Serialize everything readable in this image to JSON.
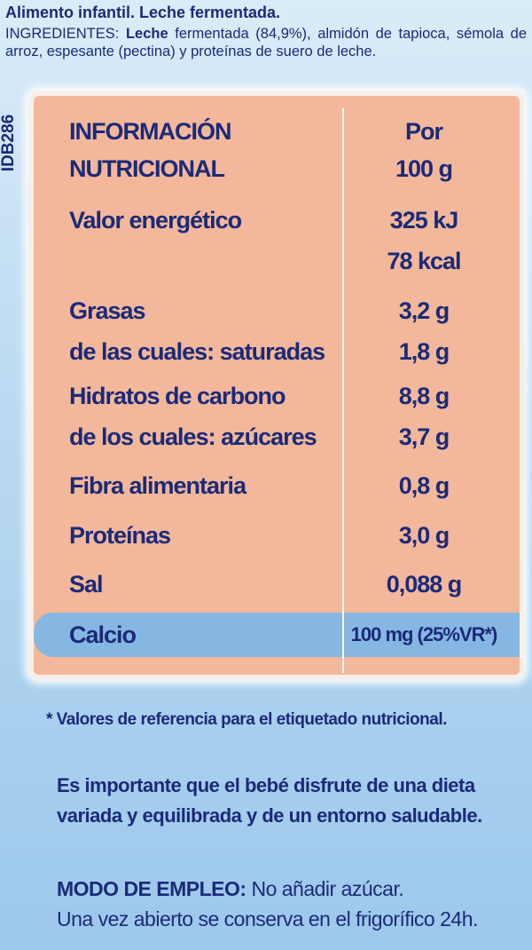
{
  "header": {
    "title": "Alimento infantil. Leche fermentada.",
    "ingredients": {
      "label": "INGREDIENTES:",
      "highlight": "Leche",
      "text": "fermentada (84,9%), almidón de tapioca, sémola de arroz, espesante (pectina) y proteínas de suero de leche."
    }
  },
  "side_code": "IDB286",
  "table": {
    "header": {
      "label": [
        "INFORMACIÓN",
        "NUTRICIONAL"
      ],
      "value": [
        "Por",
        "100 g"
      ]
    },
    "rows": [
      {
        "label": [
          "Valor energético"
        ],
        "value": [
          "325 kJ",
          "78 kcal"
        ]
      },
      {
        "label": [
          "Grasas",
          "de las cuales: saturadas"
        ],
        "value": [
          "3,2 g",
          "1,8 g"
        ]
      },
      {
        "label": [
          "Hidratos de carbono",
          "de los cuales: azúcares"
        ],
        "value": [
          "8,8 g",
          "3,7 g"
        ]
      },
      {
        "label": [
          "Fibra alimentaria"
        ],
        "value": [
          "0,8 g"
        ]
      },
      {
        "label": [
          "Proteínas"
        ],
        "value": [
          "3,0 g"
        ]
      },
      {
        "label": [
          "Sal"
        ],
        "value": [
          "0,088 g"
        ]
      },
      {
        "label": [
          "Calcio"
        ],
        "value": [
          "100 mg (25%VR*)"
        ]
      }
    ]
  },
  "footnote": "* Valores de referencia para el etiquetado nutricional.",
  "note": "Es importante que el bebé disfrute de una dieta variada y equilibrada y de un entorno saludable.",
  "usage": {
    "label": "MODO DE EMPLEO:",
    "text": "No añadir azúcar.",
    "storage": "Una vez abierto se conserva en el frigorífico 24h."
  }
}
